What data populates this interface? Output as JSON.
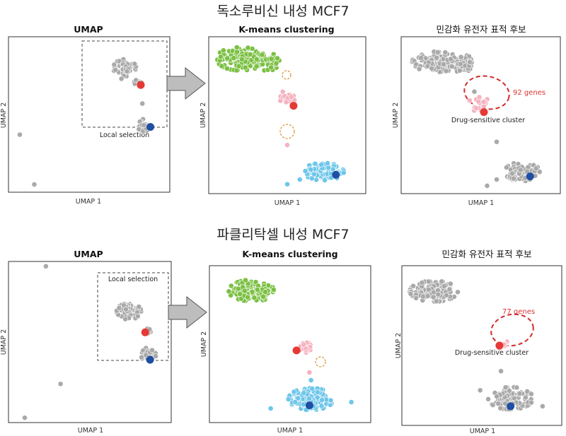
{
  "colors": {
    "grey": "#a9a9a9",
    "green": "#7bc043",
    "pink": "#f5b3c0",
    "blue": "#6ec6ea",
    "red_dot": "#e53935",
    "blue_dot": "#1f4fa3",
    "orange_ring": "#d9902a",
    "red_ring": "#d42a2a",
    "gene_text": "#d93333"
  },
  "rows": [
    {
      "title": "독소루비신 내성 MCF7",
      "panels": {
        "umap": {
          "title": "UMAP",
          "xlabel": "UMAP 1",
          "ylabel": "UMAP 2",
          "selection_label": "Local selection"
        },
        "kmeans": {
          "title": "K-means clustering",
          "xlabel": "UMAP 1",
          "ylabel": "UMAP 2"
        },
        "target": {
          "title": "민감화 유전자 표적 후보",
          "xlabel": "UMAP 1",
          "ylabel": "UMAP 2",
          "gene_label": "92 genes",
          "cluster_label": "Drug-sensitive cluster"
        }
      }
    },
    {
      "title": "파클리탁셀 내성 MCF7",
      "panels": {
        "umap": {
          "title": "UMAP",
          "xlabel": "UMAP 1",
          "ylabel": "UMAP 2",
          "selection_label": "Local selection"
        },
        "kmeans": {
          "title": "K-means clustering",
          "xlabel": "UMAP 1",
          "ylabel": "UMAP 2"
        },
        "target": {
          "title": "민감화 유전자 표적 후보",
          "xlabel": "UMAP 1",
          "ylabel": "UMAP 2",
          "gene_label": "77 genes",
          "cluster_label": "Drug-sensitive cluster"
        }
      }
    }
  ],
  "chart_data": [
    {
      "type": "scatter",
      "title": "UMAP",
      "xlabel": "UMAP 1",
      "ylabel": "UMAP 2",
      "xlim": [
        0,
        10
      ],
      "ylim": [
        0,
        10
      ],
      "series": [
        {
          "color": "grey",
          "clusters": [
            {
              "cx": 7.2,
              "cy": 8.0,
              "rx": 0.7,
              "ry": 0.55,
              "n": 60
            },
            {
              "cx": 8.0,
              "cy": 7.0,
              "rx": 0.25,
              "ry": 0.25,
              "n": 8
            },
            {
              "cx": 8.4,
              "cy": 4.3,
              "rx": 0.4,
              "ry": 0.4,
              "n": 30
            }
          ],
          "points": [
            [
              7.0,
              7.3
            ],
            [
              8.3,
              5.7
            ],
            [
              0.7,
              3.7
            ],
            [
              1.6,
              0.5
            ]
          ]
        },
        {
          "color": "red_dot",
          "points": [
            [
              8.2,
              6.9
            ]
          ]
        },
        {
          "color": "blue_dot",
          "points": [
            [
              8.8,
              4.2
            ]
          ]
        }
      ]
    },
    {
      "type": "scatter",
      "title": "K-means clustering",
      "xlabel": "UMAP 1",
      "ylabel": "UMAP 2",
      "xlim": [
        0,
        10
      ],
      "ylim": [
        0,
        10
      ],
      "series": [
        {
          "color": "green",
          "clusters": [
            {
              "cx": 2.0,
              "cy": 8.6,
              "rx": 1.5,
              "ry": 0.75,
              "n": 130
            },
            {
              "cx": 3.6,
              "cy": 8.4,
              "rx": 0.9,
              "ry": 0.6,
              "n": 50
            }
          ]
        },
        {
          "color": "pink",
          "clusters": [
            {
              "cx": 5.0,
              "cy": 6.1,
              "rx": 0.6,
              "ry": 0.45,
              "n": 22
            }
          ],
          "points": [
            [
              5.0,
              3.1
            ]
          ]
        },
        {
          "color": "blue",
          "clusters": [
            {
              "cx": 7.3,
              "cy": 1.4,
              "rx": 1.3,
              "ry": 0.55,
              "n": 90
            }
          ],
          "points": [
            [
              5.0,
              0.6
            ],
            [
              5.8,
              0.9
            ]
          ]
        },
        {
          "color": "red_dot",
          "points": [
            [
              5.4,
              5.6
            ]
          ]
        },
        {
          "color": "blue_dot",
          "points": [
            [
              8.1,
              1.2
            ]
          ]
        }
      ]
    },
    {
      "type": "scatter",
      "title": "민감화 유전자 표적 후보",
      "xlabel": "UMAP 1",
      "ylabel": "UMAP 2",
      "xlim": [
        0,
        10
      ],
      "ylim": [
        0,
        10
      ],
      "series": [
        {
          "color": "grey",
          "clusters": [
            {
              "cx": 2.2,
              "cy": 8.4,
              "rx": 1.5,
              "ry": 0.65,
              "n": 120
            },
            {
              "cx": 3.8,
              "cy": 8.3,
              "rx": 0.8,
              "ry": 0.55,
              "n": 45
            },
            {
              "cx": 7.6,
              "cy": 1.4,
              "rx": 1.1,
              "ry": 0.6,
              "n": 90
            }
          ],
          "points": [
            [
              4.6,
              6.5
            ],
            [
              6.0,
              3.3
            ],
            [
              5.4,
              0.5
            ],
            [
              6.0,
              0.9
            ]
          ]
        },
        {
          "color": "pink",
          "clusters": [
            {
              "cx": 4.9,
              "cy": 5.7,
              "rx": 0.7,
              "ry": 0.45,
              "n": 25
            }
          ]
        },
        {
          "color": "red_dot",
          "points": [
            [
              5.2,
              5.2
            ]
          ]
        },
        {
          "color": "blue_dot",
          "points": [
            [
              8.1,
              1.1
            ]
          ]
        }
      ]
    },
    {
      "type": "scatter",
      "title": "UMAP",
      "xlabel": "UMAP 1",
      "ylabel": "UMAP 2",
      "xlim": [
        0,
        10
      ],
      "ylim": [
        0,
        10
      ],
      "series": [
        {
          "color": "grey",
          "clusters": [
            {
              "cx": 7.4,
              "cy": 6.9,
              "rx": 0.75,
              "ry": 0.5,
              "n": 60
            },
            {
              "cx": 8.5,
              "cy": 5.7,
              "rx": 0.25,
              "ry": 0.25,
              "n": 8
            },
            {
              "cx": 8.6,
              "cy": 4.2,
              "rx": 0.45,
              "ry": 0.45,
              "n": 30
            }
          ],
          "points": [
            [
              2.3,
              9.7
            ],
            [
              3.2,
              2.4
            ],
            [
              1.0,
              0.3
            ]
          ]
        },
        {
          "color": "red_dot",
          "points": [
            [
              8.4,
              5.6
            ]
          ]
        },
        {
          "color": "blue_dot",
          "points": [
            [
              8.7,
              3.9
            ]
          ]
        }
      ]
    },
    {
      "type": "scatter",
      "title": "K-means clustering",
      "xlabel": "UMAP 1",
      "ylabel": "UMAP 2",
      "xlim": [
        0,
        10
      ],
      "ylim": [
        0,
        10
      ],
      "series": [
        {
          "color": "green",
          "clusters": [
            {
              "cx": 2.6,
              "cy": 8.4,
              "rx": 1.4,
              "ry": 0.7,
              "n": 160
            }
          ]
        },
        {
          "color": "pink",
          "clusters": [
            {
              "cx": 5.9,
              "cy": 4.8,
              "rx": 0.4,
              "ry": 0.35,
              "n": 16
            }
          ],
          "points": [
            [
              6.2,
              3.2
            ]
          ]
        },
        {
          "color": "blue",
          "clusters": [
            {
              "cx": 6.3,
              "cy": 1.5,
              "rx": 1.4,
              "ry": 0.7,
              "n": 130
            }
          ],
          "points": [
            [
              3.8,
              0.9
            ],
            [
              8.8,
              1.3
            ],
            [
              6.3,
              2.7
            ]
          ]
        },
        {
          "color": "red_dot",
          "points": [
            [
              5.4,
              4.6
            ]
          ]
        },
        {
          "color": "blue_dot",
          "points": [
            [
              6.2,
              1.1
            ]
          ]
        }
      ]
    },
    {
      "type": "scatter",
      "title": "민감화 유전자 표적 후보",
      "xlabel": "UMAP 1",
      "ylabel": "UMAP 2",
      "xlim": [
        0,
        10
      ],
      "ylim": [
        0,
        10
      ],
      "series": [
        {
          "color": "grey",
          "clusters": [
            {
              "cx": 2.0,
              "cy": 8.4,
              "rx": 1.5,
              "ry": 0.65,
              "n": 130
            },
            {
              "cx": 6.8,
              "cy": 1.7,
              "rx": 1.4,
              "ry": 0.7,
              "n": 110
            }
          ],
          "points": [
            [
              6.2,
              3.4
            ],
            [
              4.9,
              2.2
            ],
            [
              8.8,
              1.2
            ]
          ]
        },
        {
          "color": "pink",
          "clusters": [
            {
              "cx": 6.4,
              "cy": 5.1,
              "rx": 0.45,
              "ry": 0.35,
              "n": 14
            }
          ]
        },
        {
          "color": "red_dot",
          "points": [
            [
              6.1,
              5.0
            ]
          ]
        },
        {
          "color": "blue_dot",
          "points": [
            [
              6.8,
              1.2
            ]
          ]
        }
      ]
    }
  ]
}
